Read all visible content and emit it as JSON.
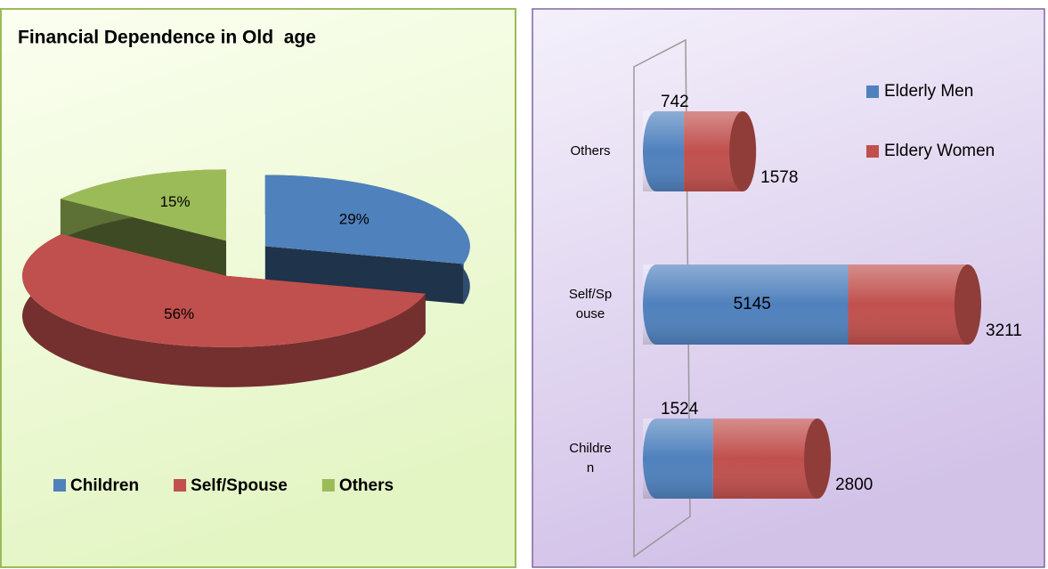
{
  "chart_data": [
    {
      "type": "pie",
      "title": "Financial Dependence in Old  age",
      "categories": [
        "Children",
        "Self/Spouse",
        "Others"
      ],
      "values": [
        29,
        56,
        15
      ],
      "value_labels": [
        "29%",
        "56%",
        "15%"
      ],
      "colors": [
        "#4f81bd",
        "#c0504d",
        "#9bbb59"
      ],
      "legend": "bottom"
    },
    {
      "type": "stacked_bar_horizontal",
      "categories": [
        "Others",
        "Self/Spouse",
        "Children"
      ],
      "series": [
        {
          "name": "Elderly Men",
          "color": "#4f81bd",
          "values": [
            742,
            5145,
            1524
          ]
        },
        {
          "name": "Eldery Women",
          "color": "#c0504d",
          "values": [
            1578,
            3211,
            2800
          ]
        }
      ],
      "legend": "top-right"
    }
  ]
}
